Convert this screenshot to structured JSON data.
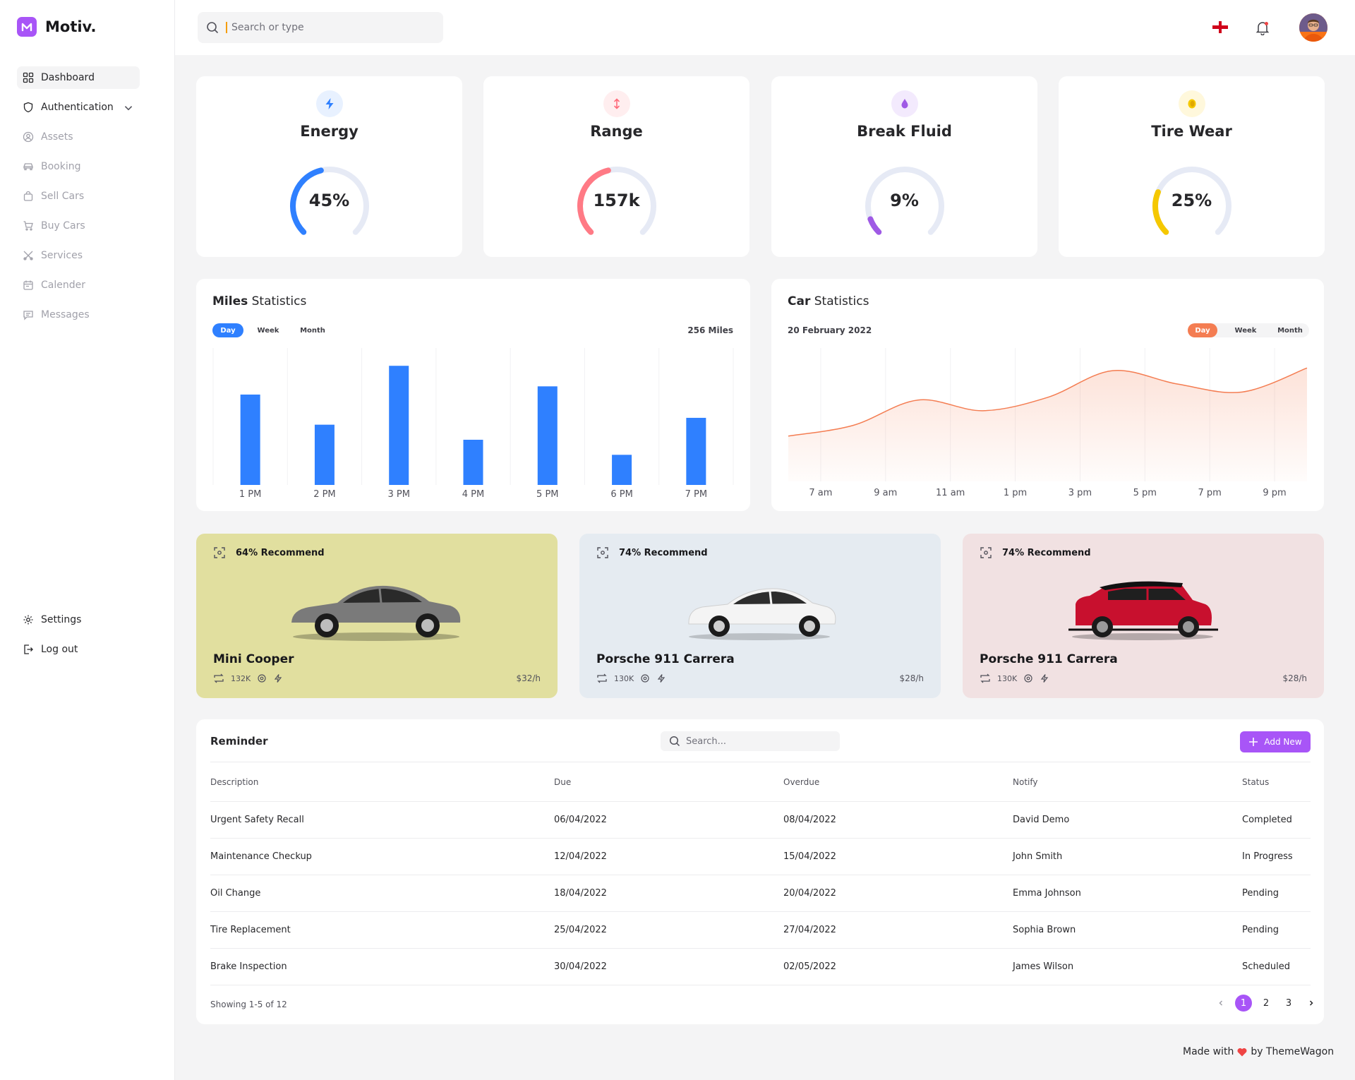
{
  "brand": {
    "name": "Motiv."
  },
  "nav": {
    "items": [
      {
        "label": "Dashboard",
        "icon": "dashboard-grid-icon"
      },
      {
        "label": "Authentication",
        "icon": "shield-icon"
      },
      {
        "label": "Assets",
        "icon": "user-circle-icon"
      },
      {
        "label": "Booking",
        "icon": "car-icon"
      },
      {
        "label": "Sell Cars",
        "icon": "shopping-bag-icon"
      },
      {
        "label": "Buy Cars",
        "icon": "cart-icon"
      },
      {
        "label": "Services",
        "icon": "tools-icon"
      },
      {
        "label": "Calender",
        "icon": "calendar-icon"
      },
      {
        "label": "Messages",
        "icon": "message-icon"
      }
    ],
    "bottom": [
      {
        "label": "Settings",
        "icon": "gear-icon"
      },
      {
        "label": "Log out",
        "icon": "logout-icon"
      }
    ]
  },
  "topbar": {
    "search_placeholder": "Search or type"
  },
  "gauges": [
    {
      "title": "Energy",
      "value": "45%",
      "fraction": 0.45,
      "color": "#2f80ff",
      "icon": "lightning-icon"
    },
    {
      "title": "Range",
      "value": "157k",
      "fraction": 0.45,
      "color": "#ff7a85",
      "icon": "arrows-vertical-icon"
    },
    {
      "title": "Break Fluid",
      "value": "9%",
      "fraction": 0.09,
      "color": "#9f5ae5",
      "icon": "drop-icon"
    },
    {
      "title": "Tire Wear",
      "value": "25%",
      "fraction": 0.25,
      "color": "#f5c800",
      "icon": "coin-icon"
    }
  ],
  "miles": {
    "title_bold": "Miles",
    "title_rest": " Statistics",
    "tabs": [
      "Day",
      "Week",
      "Month"
    ],
    "total": "256 Miles"
  },
  "car_stats": {
    "title_bold": "Car",
    "title_rest": " Statistics",
    "date": "20 February 2022",
    "tabs": [
      "Day",
      "Week",
      "Month"
    ]
  },
  "chart_data": [
    {
      "type": "bar",
      "categories": [
        "1 PM",
        "2 PM",
        "3 PM",
        "4 PM",
        "5 PM",
        "6 PM",
        "7 PM"
      ],
      "values": [
        66,
        44,
        87,
        33,
        72,
        22,
        49
      ],
      "ylim": [
        0,
        100
      ],
      "color": "#2f80ff"
    },
    {
      "type": "area",
      "categories": [
        "7 am",
        "9 am",
        "11 am",
        "1 pm",
        "3 pm",
        "5 pm",
        "7 pm",
        "9 pm"
      ],
      "x": [
        0,
        2,
        4,
        6,
        8,
        10,
        12,
        14,
        16
      ],
      "values": [
        34,
        42,
        61,
        53,
        63,
        83,
        73,
        67,
        85
      ],
      "ylim": [
        0,
        100
      ],
      "color": "#f47d52"
    }
  ],
  "recommend": [
    {
      "pct": "64% Recommend",
      "name": "Mini Cooper",
      "mileage": "132K",
      "price": "$32/h",
      "bg": "#e1df9f",
      "car_color": "#7a7a7a"
    },
    {
      "pct": "74% Recommend",
      "name": "Porsche 911 Carrera",
      "mileage": "130K",
      "price": "$28/h",
      "bg": "#e5ebf1",
      "car_color": "#f4f4f4"
    },
    {
      "pct": "74% Recommend",
      "name": "Porsche 911 Carrera",
      "mileage": "130K",
      "price": "$28/h",
      "bg": "#f1e1e2",
      "car_color": "#c8102e"
    }
  ],
  "reminder": {
    "title": "Reminder",
    "search_placeholder": "Search...",
    "add_label": "Add New",
    "columns": [
      "Description",
      "Due",
      "Overdue",
      "Notify",
      "Status"
    ],
    "rows": [
      [
        "Urgent Safety Recall",
        "06/04/2022",
        "08/04/2022",
        "David Demo",
        "Completed"
      ],
      [
        "Maintenance Checkup",
        "12/04/2022",
        "15/04/2022",
        "John Smith",
        "In Progress"
      ],
      [
        "Oil Change",
        "18/04/2022",
        "20/04/2022",
        "Emma Johnson",
        "Pending"
      ],
      [
        "Tire Replacement",
        "25/04/2022",
        "27/04/2022",
        "Sophia Brown",
        "Pending"
      ],
      [
        "Brake Inspection",
        "30/04/2022",
        "02/05/2022",
        "James Wilson",
        "Scheduled"
      ]
    ],
    "showing": "Showing 1-5 of 12",
    "pages": [
      "1",
      "2",
      "3"
    ]
  },
  "footer": {
    "made_with": "Made with",
    "by": "by ThemeWagon"
  }
}
